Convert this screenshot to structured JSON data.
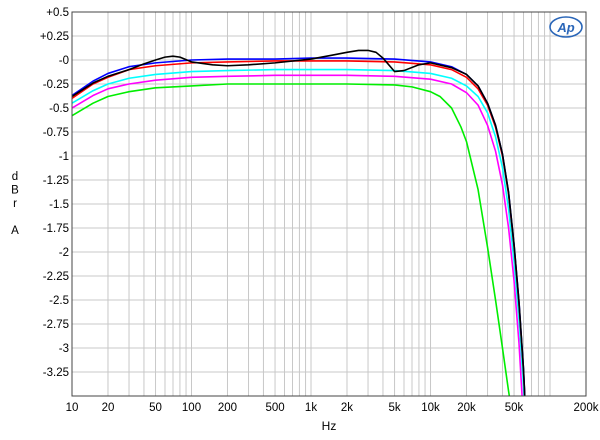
{
  "chart_data": {
    "type": "line",
    "title": "",
    "xlabel": "Hz",
    "ylabel": [
      "d",
      "B",
      "r",
      "",
      "A"
    ],
    "x_scale": "log",
    "xlim": [
      10,
      200000
    ],
    "ylim": [
      -3.5,
      0.5
    ],
    "grid": true,
    "legend": "none",
    "x_ticks": [
      {
        "v": 10,
        "label": "10"
      },
      {
        "v": 20,
        "label": "20"
      },
      {
        "v": 50,
        "label": "50"
      },
      {
        "v": 100,
        "label": "100"
      },
      {
        "v": 200,
        "label": "200"
      },
      {
        "v": 500,
        "label": "500"
      },
      {
        "v": 1000,
        "label": "1k"
      },
      {
        "v": 2000,
        "label": "2k"
      },
      {
        "v": 5000,
        "label": "5k"
      },
      {
        "v": 10000,
        "label": "10k"
      },
      {
        "v": 20000,
        "label": "20k"
      },
      {
        "v": 50000,
        "label": "50k"
      },
      {
        "v": 200000,
        "label": "200k"
      }
    ],
    "y_ticks": [
      {
        "v": 0.5,
        "label": "+0.5"
      },
      {
        "v": 0.25,
        "label": "+0.25"
      },
      {
        "v": 0,
        "label": "-0"
      },
      {
        "v": -0.25,
        "label": "-0.25"
      },
      {
        "v": -0.5,
        "label": "-0.5"
      },
      {
        "v": -0.75,
        "label": "-0.75"
      },
      {
        "v": -1,
        "label": "-1"
      },
      {
        "v": -1.25,
        "label": "-1.25"
      },
      {
        "v": -1.5,
        "label": "-1.5"
      },
      {
        "v": -1.75,
        "label": "-1.75"
      },
      {
        "v": -2,
        "label": "-2"
      },
      {
        "v": -2.25,
        "label": "-2.25"
      },
      {
        "v": -2.5,
        "label": "-2.5"
      },
      {
        "v": -2.75,
        "label": "-2.75"
      },
      {
        "v": -3,
        "label": "-3"
      },
      {
        "v": -3.25,
        "label": "-3.25"
      }
    ],
    "series": [
      {
        "color": "#00ee00",
        "x": [
          10,
          15,
          20,
          30,
          50,
          100,
          200,
          500,
          1000,
          2000,
          5000,
          7000,
          10000,
          12000,
          15000,
          18000,
          20000,
          25000,
          30000,
          35000,
          40000,
          45000,
          47000
        ],
        "y": [
          -0.58,
          -0.45,
          -0.38,
          -0.33,
          -0.29,
          -0.27,
          -0.25,
          -0.25,
          -0.25,
          -0.25,
          -0.26,
          -0.28,
          -0.33,
          -0.38,
          -0.5,
          -0.7,
          -0.85,
          -1.35,
          -1.95,
          -2.5,
          -3.0,
          -3.45,
          -3.6
        ]
      },
      {
        "color": "#ff00ff",
        "x": [
          10,
          15,
          20,
          30,
          50,
          100,
          200,
          500,
          1000,
          2000,
          5000,
          10000,
          15000,
          20000,
          25000,
          30000,
          35000,
          40000,
          45000,
          50000,
          55000,
          59000
        ],
        "y": [
          -0.5,
          -0.37,
          -0.3,
          -0.25,
          -0.21,
          -0.18,
          -0.17,
          -0.16,
          -0.16,
          -0.16,
          -0.17,
          -0.2,
          -0.25,
          -0.34,
          -0.47,
          -0.68,
          -0.95,
          -1.3,
          -1.75,
          -2.3,
          -2.95,
          -3.6
        ]
      },
      {
        "color": "#00ffff",
        "x": [
          10,
          15,
          20,
          30,
          50,
          100,
          200,
          500,
          1000,
          2000,
          5000,
          10000,
          15000,
          20000,
          25000,
          30000,
          35000,
          40000,
          45000,
          50000,
          55000,
          60000,
          61000
        ],
        "y": [
          -0.45,
          -0.32,
          -0.25,
          -0.19,
          -0.15,
          -0.12,
          -0.11,
          -0.1,
          -0.1,
          -0.1,
          -0.11,
          -0.14,
          -0.19,
          -0.27,
          -0.38,
          -0.55,
          -0.8,
          -1.12,
          -1.55,
          -2.1,
          -2.7,
          -3.4,
          -3.6
        ]
      },
      {
        "color": "#ff0000",
        "x": [
          10,
          15,
          20,
          30,
          50,
          100,
          200,
          500,
          1000,
          2000,
          5000,
          10000,
          15000,
          20000,
          25000,
          30000,
          35000,
          40000,
          45000,
          50000,
          55000,
          60000,
          62000
        ],
        "y": [
          -0.4,
          -0.25,
          -0.18,
          -0.1,
          -0.06,
          -0.03,
          -0.02,
          -0.01,
          -0.01,
          -0.01,
          -0.02,
          -0.05,
          -0.1,
          -0.18,
          -0.3,
          -0.47,
          -0.7,
          -1.0,
          -1.4,
          -1.95,
          -2.55,
          -3.25,
          -3.6
        ]
      },
      {
        "color": "#0000ff",
        "x": [
          10,
          15,
          20,
          30,
          50,
          100,
          200,
          500,
          1000,
          2000,
          5000,
          10000,
          15000,
          20000,
          25000,
          30000,
          35000,
          40000,
          45000,
          50000,
          55000,
          60000,
          62000
        ],
        "y": [
          -0.37,
          -0.22,
          -0.14,
          -0.07,
          -0.03,
          0.0,
          0.01,
          0.01,
          0.02,
          0.02,
          0.01,
          -0.02,
          -0.07,
          -0.15,
          -0.27,
          -0.45,
          -0.68,
          -0.98,
          -1.38,
          -1.92,
          -2.52,
          -3.22,
          -3.6
        ]
      },
      {
        "color": "#000000",
        "x": [
          10,
          15,
          20,
          30,
          40,
          50,
          60,
          70,
          80,
          100,
          150,
          200,
          300,
          500,
          1000,
          1500,
          2000,
          2500,
          3000,
          3500,
          4000,
          5000,
          6000,
          8000,
          10000,
          15000,
          20000,
          25000,
          30000,
          35000,
          40000,
          45000,
          50000,
          55000,
          60000,
          62000
        ],
        "y": [
          -0.38,
          -0.24,
          -0.17,
          -0.1,
          -0.04,
          0.0,
          0.03,
          0.04,
          0.03,
          -0.02,
          -0.05,
          -0.06,
          -0.05,
          -0.03,
          0.01,
          0.05,
          0.08,
          0.1,
          0.1,
          0.08,
          0.02,
          -0.12,
          -0.11,
          -0.05,
          -0.03,
          -0.08,
          -0.15,
          -0.27,
          -0.45,
          -0.68,
          -0.98,
          -1.38,
          -1.92,
          -2.52,
          -3.22,
          -3.6
        ]
      }
    ]
  },
  "logo": {
    "text": "Ap",
    "color": "#2a66b8"
  }
}
